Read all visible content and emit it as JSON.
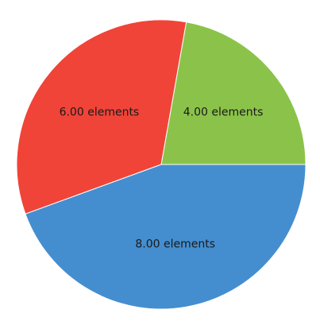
{
  "chart_data": {
    "type": "pie",
    "slices": [
      {
        "value": 4,
        "label": "4.00 elements",
        "color": "#8BC34A"
      },
      {
        "value": 6,
        "label": "6.00 elements",
        "color": "#F04438"
      },
      {
        "value": 8,
        "label": "8.00 elements",
        "color": "#448ED0"
      }
    ],
    "start": "3 o'clock",
    "direction": "counterclockwise",
    "legend": "none"
  }
}
